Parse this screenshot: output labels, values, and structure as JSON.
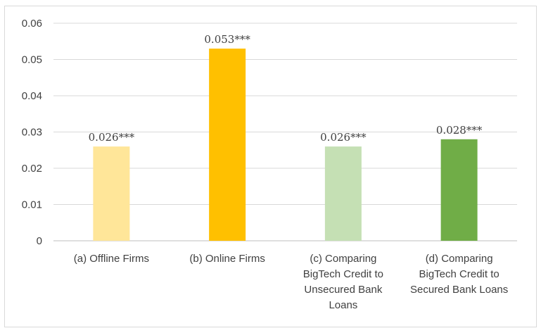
{
  "chart_data": {
    "type": "bar",
    "title": "",
    "xlabel": "",
    "ylabel": "",
    "ylim": [
      0,
      0.06
    ],
    "yticks": [
      "0",
      "0.01",
      "0.02",
      "0.03",
      "0.04",
      "0.05",
      "0.06"
    ],
    "grid": true,
    "legend": "none",
    "categories": [
      [
        "(a) Offline Firms"
      ],
      [
        "(b) Online Firms"
      ],
      [
        "(c) Comparing",
        "BigTech Credit to",
        "Unsecured Bank",
        "Loans"
      ],
      [
        "(d) Comparing",
        "BigTech Credit to",
        "Secured Bank Loans"
      ]
    ],
    "values": [
      0.026,
      0.053,
      0.026,
      0.028
    ],
    "data_labels": [
      "0.026***",
      "0.053***",
      "0.026***",
      "0.028***"
    ],
    "colors": [
      "#FFE699",
      "#FFC000",
      "#C5E0B4",
      "#70AD47"
    ]
  }
}
